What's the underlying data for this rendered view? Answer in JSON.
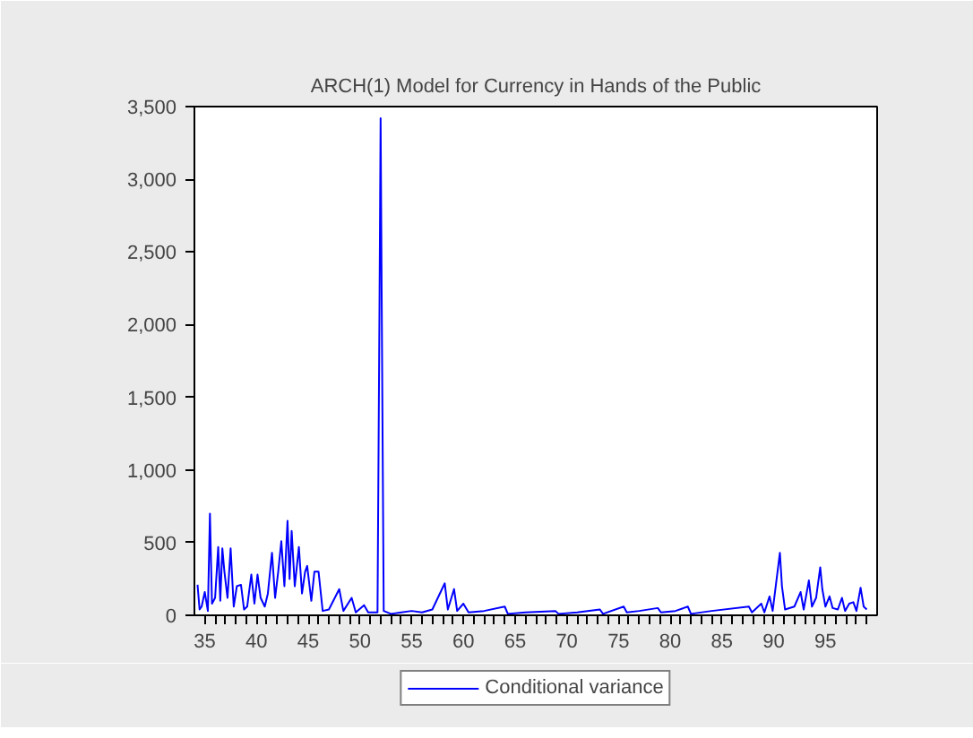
{
  "chart_data": {
    "type": "line",
    "title": "ARCH(1) Model for Currency in Hands of the Public",
    "x": [
      34.3,
      34.5,
      34.7,
      35.0,
      35.3,
      35.5,
      35.7,
      36.0,
      36.3,
      36.5,
      36.7,
      36.9,
      37.2,
      37.5,
      37.8,
      38.1,
      38.5,
      38.8,
      39.1,
      39.5,
      39.8,
      40.1,
      40.4,
      40.8,
      41.1,
      41.5,
      41.8,
      42.1,
      42.4,
      42.7,
      43.0,
      43.2,
      43.4,
      43.7,
      44.1,
      44.4,
      44.7,
      44.9,
      45.3,
      45.6,
      46.0,
      46.4,
      47.0,
      48.0,
      48.4,
      49.2,
      49.6,
      50.4,
      50.8,
      51.7,
      51.9,
      52.0,
      52.1,
      52.3,
      53,
      54,
      55,
      56,
      57,
      58.2,
      58.5,
      59.1,
      59.4,
      60.0,
      60.5,
      62,
      64.0,
      64.3,
      66,
      68.9,
      69.2,
      71,
      73.2,
      73.5,
      75.5,
      75.8,
      77,
      78.8,
      79.1,
      80.5,
      81.7,
      82,
      84,
      87.6,
      87.9,
      88.8,
      89.1,
      89.6,
      89.9,
      90.6,
      90.8,
      91.1,
      92,
      92.6,
      92.9,
      93.4,
      93.7,
      94.1,
      94.5,
      94.7,
      95.0,
      95.4,
      95.7,
      96.2,
      96.6,
      96.9,
      97.3,
      97.7,
      98.0,
      98.4,
      98.7,
      99.0
    ],
    "series": [
      {
        "name": "Conditional variance",
        "color": "#0000ff",
        "values": [
          210,
          40,
          60,
          160,
          30,
          700,
          80,
          120,
          470,
          100,
          460,
          300,
          120,
          460,
          60,
          200,
          210,
          40,
          60,
          280,
          80,
          280,
          120,
          60,
          150,
          430,
          120,
          300,
          510,
          200,
          650,
          250,
          580,
          200,
          470,
          150,
          300,
          340,
          100,
          300,
          300,
          30,
          40,
          180,
          30,
          120,
          20,
          70,
          20,
          20,
          2230,
          3420,
          2230,
          30,
          10,
          20,
          30,
          20,
          40,
          220,
          40,
          180,
          30,
          80,
          20,
          30,
          60,
          10,
          20,
          30,
          10,
          20,
          40,
          10,
          60,
          20,
          30,
          50,
          20,
          30,
          60,
          10,
          30,
          60,
          20,
          80,
          20,
          130,
          30,
          430,
          200,
          40,
          60,
          160,
          40,
          240,
          60,
          120,
          330,
          180,
          60,
          130,
          50,
          40,
          120,
          30,
          80,
          90,
          30,
          190,
          60,
          40
        ]
      }
    ],
    "xlim": [
      34,
      100
    ],
    "xticks": [
      35,
      {
        "value": 36,
        "label": null
      },
      {
        "value": 37,
        "label": null
      },
      {
        "value": 38,
        "label": null
      },
      {
        "value": 39,
        "label": null
      },
      40,
      {
        "value": 41,
        "label": null
      },
      {
        "value": 42,
        "label": null
      },
      {
        "value": 43,
        "label": null
      },
      {
        "value": 44,
        "label": null
      },
      45,
      {
        "value": 46,
        "label": null
      },
      {
        "value": 47,
        "label": null
      },
      {
        "value": 48,
        "label": null
      },
      {
        "value": 49,
        "label": null
      },
      50,
      {
        "value": 51,
        "label": null
      },
      {
        "value": 52,
        "label": null
      },
      {
        "value": 53,
        "label": null
      },
      {
        "value": 54,
        "label": null
      },
      55,
      {
        "value": 56,
        "label": null
      },
      {
        "value": 57,
        "label": null
      },
      {
        "value": 58,
        "label": null
      },
      {
        "value": 59,
        "label": null
      },
      60,
      {
        "value": 61,
        "label": null
      },
      {
        "value": 62,
        "label": null
      },
      {
        "value": 63,
        "label": null
      },
      {
        "value": 64,
        "label": null
      },
      65,
      {
        "value": 66,
        "label": null
      },
      {
        "value": 67,
        "label": null
      },
      {
        "value": 68,
        "label": null
      },
      {
        "value": 69,
        "label": null
      },
      70,
      {
        "value": 71,
        "label": null
      },
      {
        "value": 72,
        "label": null
      },
      {
        "value": 73,
        "label": null
      },
      {
        "value": 74,
        "label": null
      },
      75,
      {
        "value": 76,
        "label": null
      },
      {
        "value": 77,
        "label": null
      },
      {
        "value": 78,
        "label": null
      },
      {
        "value": 79,
        "label": null
      },
      80,
      {
        "value": 81,
        "label": null
      },
      {
        "value": 82,
        "label": null
      },
      {
        "value": 83,
        "label": null
      },
      {
        "value": 84,
        "label": null
      },
      85,
      {
        "value": 86,
        "label": null
      },
      {
        "value": 87,
        "label": null
      },
      {
        "value": 88,
        "label": null
      },
      {
        "value": 89,
        "label": null
      },
      90,
      {
        "value": 91,
        "label": null
      },
      {
        "value": 92,
        "label": null
      },
      {
        "value": 93,
        "label": null
      },
      {
        "value": 94,
        "label": null
      },
      95,
      {
        "value": 96,
        "label": null
      },
      {
        "value": 97,
        "label": null
      },
      {
        "value": 98,
        "label": null
      },
      {
        "value": 99,
        "label": null
      }
    ],
    "ylim": [
      0,
      3500
    ],
    "yticks": [
      0,
      500,
      {
        "value": 1000,
        "label": "1,000"
      },
      {
        "value": 1500,
        "label": "1,500"
      },
      {
        "value": 2000,
        "label": "2,000"
      },
      {
        "value": 2500,
        "label": "2,500"
      },
      {
        "value": 3000,
        "label": "3,000"
      },
      {
        "value": 3500,
        "label": "3,500"
      }
    ],
    "grid": false,
    "legend": "bottom",
    "marker": "none",
    "line_style": "solid"
  }
}
